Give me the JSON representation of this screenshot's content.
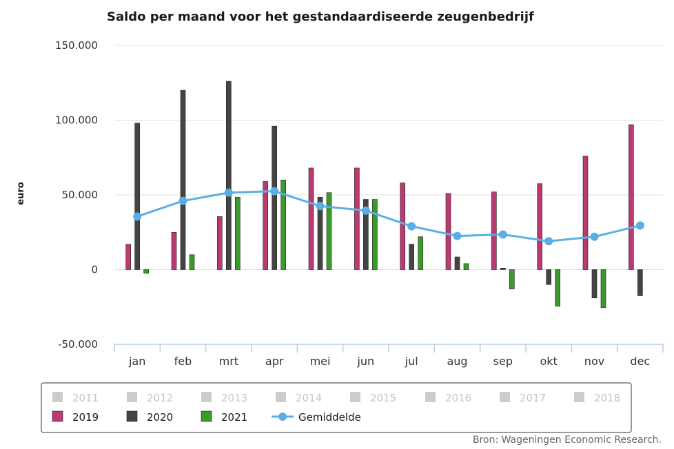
{
  "chart_data": {
    "type": "bar",
    "title": "Saldo per maand voor het gestandaardiseerde zeugenbedrijf",
    "ylabel": "euro",
    "xlabel": "",
    "ylim": [
      -50000,
      150000
    ],
    "yticks": [
      150000,
      100000,
      50000,
      0,
      -50000
    ],
    "ytick_labels": [
      "150.000",
      "100.000",
      "50.000",
      "0",
      "-50.000"
    ],
    "categories": [
      "jan",
      "feb",
      "mrt",
      "apr",
      "mei",
      "jun",
      "jul",
      "aug",
      "sep",
      "okt",
      "nov",
      "dec"
    ],
    "grid": true,
    "legend_position": "bottom",
    "series": [
      {
        "name": "2019",
        "type": "bar",
        "color": "#bb3a72",
        "values": [
          17000,
          25000,
          35500,
          59000,
          68000,
          68000,
          58000,
          51000,
          52000,
          57500,
          76000,
          97000
        ]
      },
      {
        "name": "2020",
        "type": "bar",
        "color": "#444444",
        "values": [
          98000,
          120000,
          126000,
          96000,
          48500,
          47000,
          17000,
          8500,
          1000,
          -10000,
          -19000,
          -17500
        ]
      },
      {
        "name": "2021",
        "type": "bar",
        "color": "#3a9a2a",
        "values": [
          -2500,
          10000,
          48500,
          60000,
          51500,
          47000,
          22000,
          4000,
          -13000,
          -24500,
          -25500,
          null
        ]
      },
      {
        "name": "Gemiddelde",
        "type": "line",
        "color": "#5aaee6",
        "values": [
          35500,
          46000,
          51500,
          52500,
          42500,
          39500,
          29000,
          22500,
          23500,
          19000,
          22000,
          29500
        ]
      }
    ],
    "legend": {
      "disabled": [
        "2011",
        "2012",
        "2013",
        "2014",
        "2015",
        "2016",
        "2017",
        "2018"
      ],
      "disabled_color": "#cccccc",
      "enabled": [
        {
          "name": "2019",
          "color": "#bb3a72",
          "kind": "bar"
        },
        {
          "name": "2020",
          "color": "#444444",
          "kind": "bar"
        },
        {
          "name": "2021",
          "color": "#3a9a2a",
          "kind": "bar"
        },
        {
          "name": "Gemiddelde",
          "color": "#5aaee6",
          "kind": "line"
        }
      ]
    },
    "source": "Bron: Wageningen Economic Research."
  }
}
